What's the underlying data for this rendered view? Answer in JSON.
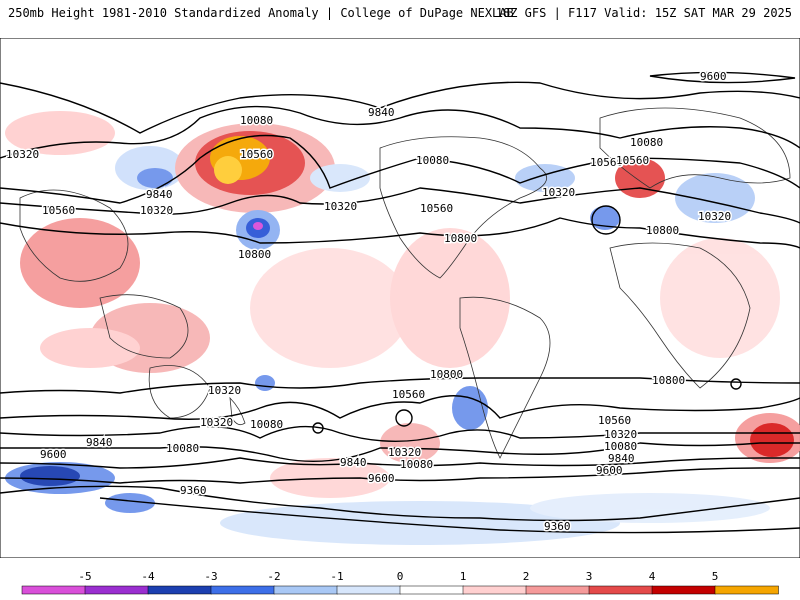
{
  "header": {
    "left": "250mb Height 1981-2010 Standardized Anomaly | College of DuPage NEXLAB",
    "right": "18Z GFS | F117 Valid: 15Z SAT MAR 29 2025"
  },
  "contour_labels": [
    "9600",
    "10320",
    "9840",
    "10080",
    "10560",
    "10320",
    "10560",
    "10080",
    "10320",
    "10560",
    "10800",
    "10800",
    "10320",
    "10560",
    "9840",
    "10800",
    "10320",
    "10560",
    "10080",
    "10320",
    "10080",
    "9600",
    "10800",
    "10560",
    "10800",
    "10560",
    "10320",
    "10080",
    "9840",
    "9600",
    "10320",
    "10080",
    "9840",
    "9600",
    "9360",
    "9360",
    "10800",
    "10560",
    "10320",
    "10080",
    "9840",
    "9600"
  ],
  "colorbar": {
    "ticks": [
      "-5",
      "-4",
      "-3",
      "-2",
      "-1",
      "0",
      "1",
      "2",
      "3",
      "4",
      "5"
    ],
    "colors": [
      "#d94fd9",
      "#9a2fd0",
      "#1c3fb0",
      "#3d6fe8",
      "#a9c8f5",
      "#d7e6fb",
      "#ffffff",
      "#ffd0d0",
      "#f59a9a",
      "#e44a4a",
      "#c30000",
      "#f5a500"
    ]
  }
}
